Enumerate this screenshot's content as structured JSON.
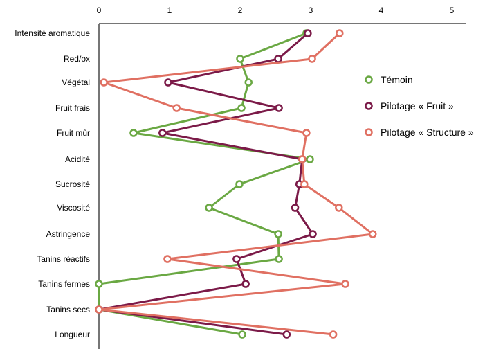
{
  "chart_data": {
    "type": "line",
    "orientation": "horizontal-profile",
    "categories": [
      "Intensité aromatique",
      "Red/ox",
      "Végétal",
      "Fruit frais",
      "Fruit mûr",
      "Acidité",
      "Sucrosité",
      "Viscosité",
      "Astringence",
      "Tanins réactifs",
      "Tanins fermes",
      "Tanins secs",
      "Longueur"
    ],
    "xlim": [
      0,
      5
    ],
    "xticks": [
      "0",
      "1",
      "2",
      "3",
      "4",
      "5"
    ],
    "x_axis_position": "top",
    "grid": false,
    "legend_position": "right",
    "series": [
      {
        "name": "Témoin",
        "color": "#6aa843",
        "values": [
          2.94,
          2.0,
          2.12,
          2.02,
          0.49,
          2.99,
          1.99,
          1.56,
          2.54,
          2.55,
          0,
          0,
          2.03
        ]
      },
      {
        "name": "Pilotage « Fruit »",
        "color": "#7b1a48",
        "values": [
          2.96,
          2.54,
          0.98,
          2.55,
          0.9,
          2.88,
          2.84,
          2.78,
          3.03,
          1.95,
          2.08,
          0,
          2.66
        ]
      },
      {
        "name": "Pilotage « Structure »",
        "color": "#e07062",
        "values": [
          3.41,
          3.02,
          0.07,
          1.1,
          2.94,
          2.88,
          2.91,
          3.4,
          3.88,
          0.97,
          3.49,
          0,
          3.32
        ]
      }
    ]
  }
}
